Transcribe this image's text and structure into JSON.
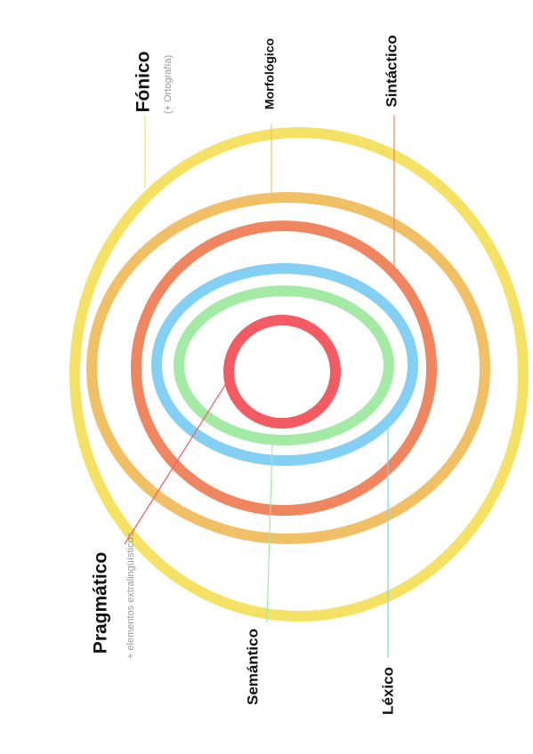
{
  "labels": {
    "fonico": "Fónico",
    "fonico_note": "(+ Ortografía)",
    "morfologico": "Morfológico",
    "sintactico": "Sintáctico",
    "pragmatico": "Pragmático",
    "pragmatico_note": "+ elementos extralingüísticos",
    "semantico": "Semántico",
    "lexico": "Léxico"
  }
}
